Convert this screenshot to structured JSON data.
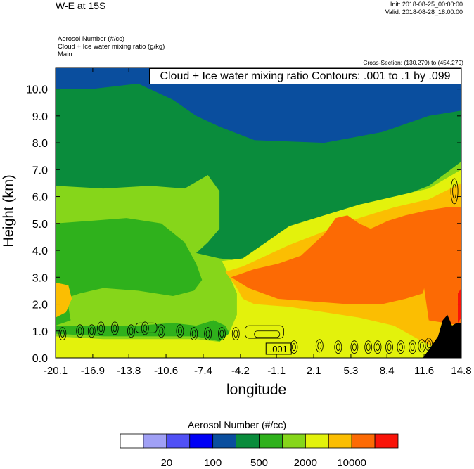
{
  "header": {
    "title": "W-E at 15S",
    "init": "Init: 2018-08-25_00:00:00",
    "valid": "Valid: 2018-08-28_18:00:00",
    "fields": [
      "Aerosol Number   (#/cc)",
      "Cloud + Ice water mixing ratio   (g/kg)",
      "Main"
    ],
    "cross_section": "Cross-Section: (130,279) to (454,279)"
  },
  "contour_box": "Cloud + Ice water mixing ratio Contours: .001 to .1 by .099",
  "contour_label": ".001",
  "colors": {
    "bands": [
      "#ffffff",
      "#a0a0f5",
      "#5050f5",
      "#0000f5",
      "#0a4e9e",
      "#0a8c3c",
      "#2fb11c",
      "#86d61a",
      "#e3f20c",
      "#fbbe02",
      "#fc6a04",
      "#f91409"
    ],
    "terrain": "#000000"
  },
  "chart_data": {
    "type": "heatmap",
    "title": "W-E at 15S",
    "xlabel": "longitude",
    "ylabel": "Height (km)",
    "x_ticks": [
      "-20.1",
      "-16.9",
      "-13.8",
      "-10.6",
      "-7.4",
      "-4.2",
      "-1.1",
      "2.1",
      "5.3",
      "8.4",
      "11.6",
      "14.8"
    ],
    "y_ticks": [
      "0.0",
      "1.0",
      "2.0",
      "3.0",
      "4.0",
      "5.0",
      "6.0",
      "7.0",
      "8.0",
      "9.0",
      "10.0"
    ],
    "xlim": [
      -20.1,
      14.8
    ],
    "ylim": [
      0.0,
      10.8
    ],
    "colorbar": {
      "title": "Aerosol Number  (#/cc)",
      "tick_labels": [
        "20",
        "100",
        "500",
        "2000",
        "10000"
      ]
    },
    "cloud_contours": {
      "min": 0.001,
      "max": 0.1,
      "interval": 0.099
    },
    "regions": [
      {
        "level_index": 4,
        "description_band": "high",
        "polygon": [
          [
            -20.1,
            10.8
          ],
          [
            14.8,
            10.8
          ],
          [
            14.8,
            9.2
          ],
          [
            12,
            9.0
          ],
          [
            8,
            8.4
          ],
          [
            3,
            8.0
          ],
          [
            -3,
            8.1
          ],
          [
            -6,
            8.6
          ],
          [
            -8,
            9.0
          ],
          [
            -10,
            9.6
          ],
          [
            -13,
            10.2
          ],
          [
            -17,
            10.0
          ],
          [
            -20.1,
            10.0
          ]
        ]
      },
      {
        "level_index": 7,
        "polygon": [
          [
            -20.1,
            6.4
          ],
          [
            -16,
            6.3
          ],
          [
            -12,
            6.4
          ],
          [
            -9,
            6.3
          ],
          [
            -7,
            6.8
          ],
          [
            -6,
            6.2
          ],
          [
            -6,
            4.8
          ],
          [
            -7,
            4.3
          ],
          [
            -8,
            3.9
          ],
          [
            -6,
            3.7
          ],
          [
            -4,
            3.6
          ],
          [
            -2,
            4.2
          ],
          [
            0,
            4.8
          ],
          [
            3,
            5.2
          ],
          [
            6,
            5.6
          ],
          [
            9,
            5.9
          ],
          [
            12,
            6.4
          ],
          [
            14.8,
            7.3
          ],
          [
            14.8,
            0.0
          ],
          [
            -20.1,
            0.0
          ]
        ]
      },
      {
        "level_index": 6,
        "polygon": [
          [
            -20.1,
            5.0
          ],
          [
            -17,
            5.1
          ],
          [
            -14,
            5.2
          ],
          [
            -11,
            5.0
          ],
          [
            -9,
            4.3
          ],
          [
            -8,
            3.5
          ],
          [
            -7.5,
            2.9
          ],
          [
            -8.2,
            2.5
          ],
          [
            -10,
            2.3
          ],
          [
            -13,
            2.5
          ],
          [
            -16,
            2.6
          ],
          [
            -18,
            2.4
          ],
          [
            -20.1,
            2.1
          ],
          [
            -20.1,
            2.0
          ],
          [
            -19,
            1.9
          ],
          [
            -18.8,
            1.4
          ],
          [
            -20.1,
            1.2
          ]
        ]
      },
      {
        "level_index": 6,
        "polygon": [
          [
            -20.1,
            1.2
          ],
          [
            -17,
            1.2
          ],
          [
            -13,
            1.2
          ],
          [
            -10,
            1.3
          ],
          [
            -8,
            1.2
          ],
          [
            -6.5,
            1.4
          ],
          [
            -5.5,
            1.2
          ],
          [
            -5,
            0.8
          ],
          [
            -5.8,
            0.6
          ],
          [
            -8,
            0.8
          ],
          [
            -12,
            0.8
          ],
          [
            -16,
            0.8
          ],
          [
            -20.1,
            0.9
          ]
        ]
      },
      {
        "level_index": 8,
        "polygon": [
          [
            -20.1,
            0.8
          ],
          [
            -16,
            0.7
          ],
          [
            -12,
            0.7
          ],
          [
            -8,
            0.7
          ],
          [
            -6,
            0.6
          ],
          [
            -5.2,
            0.9
          ],
          [
            -4.5,
            1.6
          ],
          [
            -4.5,
            2.4
          ],
          [
            -5.2,
            3.1
          ],
          [
            -5.8,
            3.6
          ],
          [
            -4,
            3.7
          ],
          [
            -2,
            4.3
          ],
          [
            0,
            4.9
          ],
          [
            3,
            5.3
          ],
          [
            6,
            5.7
          ],
          [
            9,
            6.0
          ],
          [
            12,
            6.3
          ],
          [
            14.8,
            7.0
          ],
          [
            14.8,
            0.0
          ],
          [
            -20.1,
            0.0
          ]
        ]
      },
      {
        "level_index": 9,
        "polygon": [
          [
            -20.1,
            2.8
          ],
          [
            -19,
            2.7
          ],
          [
            -18.7,
            2.2
          ],
          [
            -19.2,
            1.7
          ],
          [
            -20.1,
            1.5
          ]
        ]
      },
      {
        "level_index": 9,
        "polygon": [
          [
            -5.5,
            3.2
          ],
          [
            -4,
            3.4
          ],
          [
            -2,
            3.8
          ],
          [
            0,
            4.2
          ],
          [
            3,
            4.7
          ],
          [
            6,
            5.2
          ],
          [
            9,
            5.6
          ],
          [
            12,
            5.9
          ],
          [
            14.8,
            6.5
          ],
          [
            14.8,
            0.0
          ],
          [
            11.5,
            0.6
          ],
          [
            9,
            1.2
          ],
          [
            6,
            1.5
          ],
          [
            3,
            1.7
          ],
          [
            0,
            1.9
          ],
          [
            -3,
            2.0
          ],
          [
            -4,
            2.2
          ],
          [
            -4.5,
            2.6
          ]
        ]
      },
      {
        "level_index": 10,
        "polygon": [
          [
            -5.0,
            3.0
          ],
          [
            -3,
            3.3
          ],
          [
            -1,
            3.5
          ],
          [
            1,
            3.8
          ],
          [
            2,
            4.2
          ],
          [
            3,
            4.6
          ],
          [
            4,
            5.2
          ],
          [
            5,
            5.3
          ],
          [
            6,
            5.0
          ],
          [
            7,
            4.8
          ],
          [
            8.5,
            5.1
          ],
          [
            10,
            5.3
          ],
          [
            12,
            5.5
          ],
          [
            13.5,
            5.6
          ],
          [
            14.8,
            5.6
          ],
          [
            14.8,
            1.2
          ],
          [
            12,
            1.4
          ],
          [
            11.6,
            2.6
          ],
          [
            11.5,
            2.4
          ],
          [
            10,
            2.2
          ],
          [
            8,
            2.0
          ],
          [
            5,
            2.0
          ],
          [
            2,
            2.1
          ],
          [
            -1,
            2.2
          ],
          [
            -3.5,
            2.6
          ]
        ]
      },
      {
        "level_index": 11,
        "polygon": [
          [
            14.5,
            2.4
          ],
          [
            14.8,
            2.6
          ],
          [
            14.8,
            1.5
          ],
          [
            14.5,
            1.3
          ]
        ]
      }
    ],
    "terrain": [
      [
        11.5,
        0.0
      ],
      [
        12.0,
        0.3
      ],
      [
        12.8,
        0.8
      ],
      [
        13.2,
        1.4
      ],
      [
        13.6,
        1.6
      ],
      [
        14.0,
        1.2
      ],
      [
        14.4,
        1.3
      ],
      [
        14.8,
        1.3
      ],
      [
        14.8,
        0.0
      ]
    ]
  }
}
